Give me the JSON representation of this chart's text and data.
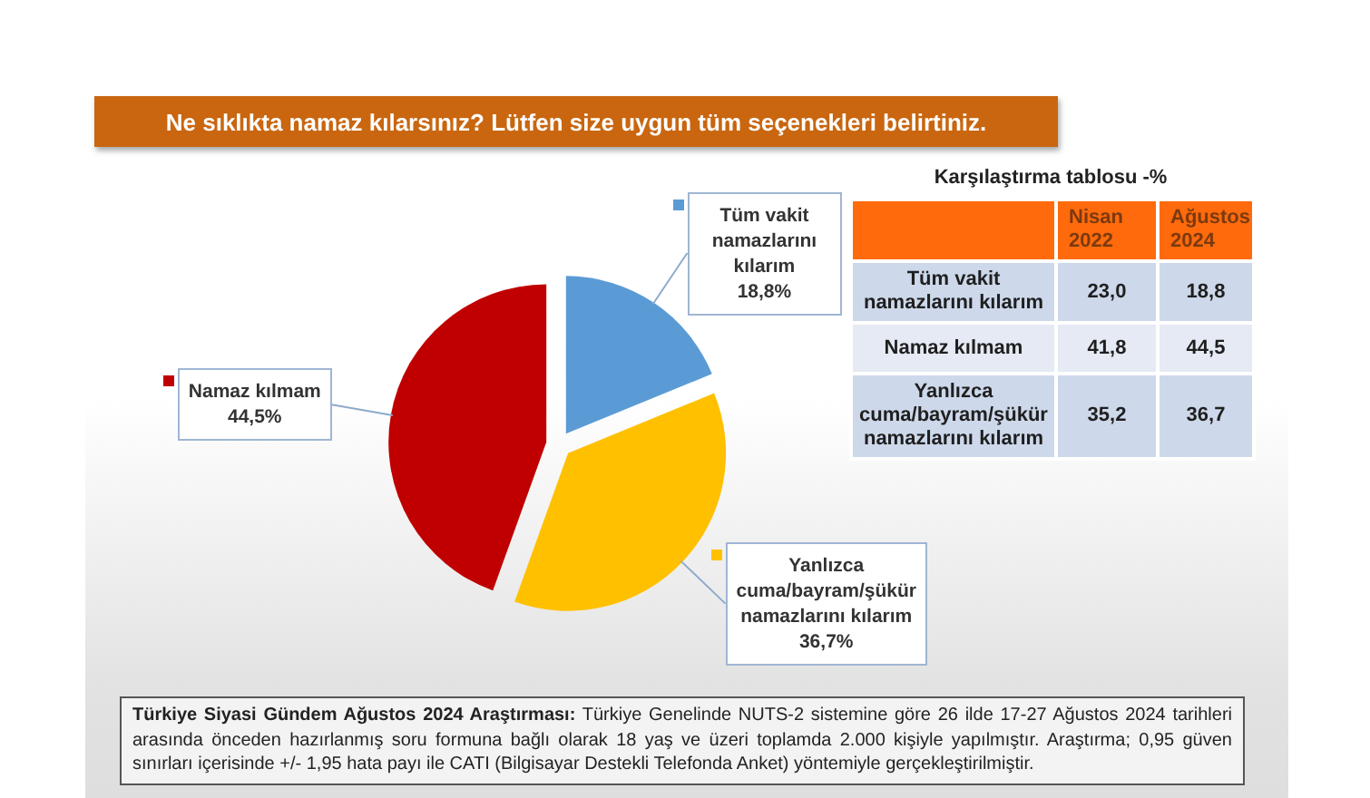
{
  "chart_data": [
    {
      "type": "pie",
      "title": "Ne sıklıkta namaz kılarsınız? Lütfen size uygun tüm seçenekleri belirtiniz.",
      "categories": [
        "Tüm vakit namazlarını kılarım",
        "Yanlızca cuma/bayram/şükür namazlarını kılarım",
        "Namaz kılmam"
      ],
      "values": [
        18.8,
        36.7,
        44.5
      ],
      "colors": [
        "#5b9bd5",
        "#ffc000",
        "#c00000"
      ],
      "value_labels": [
        "18,8%",
        "36,7%",
        "44,5%"
      ],
      "legend": "top left",
      "annotations": [
        "Türkiye Siyasi Gündem Ağustos 2024 Araştırması: Türkiye Genelinde NUTS-2 sistemine göre 26 ilde 17-27 Ağustos 2024 tarihleri arasında önceden hazırlanmış soru formuna bağlı olarak 18 yaş ve üzeri toplamda 2.000 kişiyle yapılmıştır. Araştırma; 0,95 güven sınırları içerisinde +/- 1,95 hata payı ile CATI (Bilgisayar Destekli Telefonda Anket) yöntemiyle gerçekleştirilmiştir."
      ]
    },
    {
      "type": "other",
      "title": "Karşılaştırma tablosu -%",
      "categories": [
        "Tüm vakit namazlarını kılarım",
        "Namaz kılmam",
        "Yanlızca cuma/bayram/şükür namazlarını kılarım"
      ],
      "series": [
        {
          "name": "Nisan 2022",
          "values": [
            23.0,
            41.8,
            35.2
          ],
          "value_labels": [
            "23,0",
            "41,8",
            "35,2"
          ],
          "colors": [
            "#cdd8ea",
            "#e5eaf4",
            "#cdd8ea"
          ]
        },
        {
          "name": "Ağustos 2024",
          "values": [
            18.8,
            44.5,
            36.7
          ],
          "value_labels": [
            "18,8",
            "44,5",
            "36,7"
          ],
          "colors": [
            "#cdd8ea",
            "#e5eaf4",
            "#cdd8ea"
          ]
        }
      ]
    }
  ]
}
